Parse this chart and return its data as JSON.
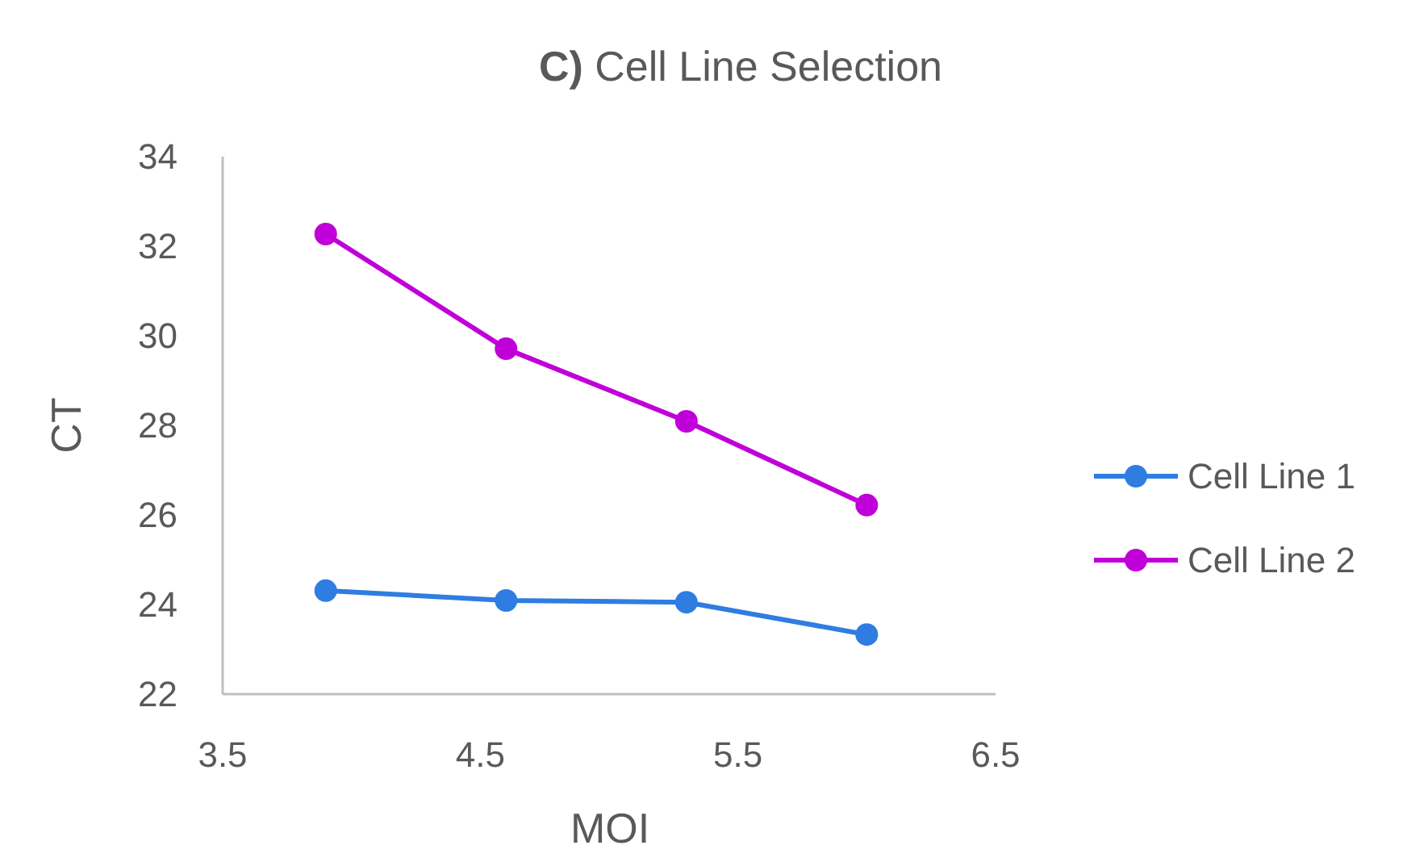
{
  "chart_data": {
    "type": "line",
    "title": "C) Cell Line Selection",
    "xlabel": "MOI",
    "ylabel": "CT",
    "x": [
      3.9,
      4.6,
      5.3,
      6.0
    ],
    "series": [
      {
        "name": "Cell Line 1",
        "color": "#2f7de1",
        "values": [
          24.31,
          24.09,
          24.05,
          23.33
        ]
      },
      {
        "name": "Cell Line 2",
        "color": "#c000d8",
        "values": [
          32.27,
          29.71,
          28.09,
          26.22
        ]
      }
    ],
    "xlim": [
      3.5,
      6.5
    ],
    "xticks": [
      3.5,
      4.5,
      5.5,
      6.5
    ],
    "ylim": [
      22,
      34
    ],
    "yticks": [
      22,
      24,
      26,
      28,
      30,
      32,
      34
    ],
    "grid": false,
    "legend": "right",
    "marker": "circle",
    "line_style": "solid"
  }
}
